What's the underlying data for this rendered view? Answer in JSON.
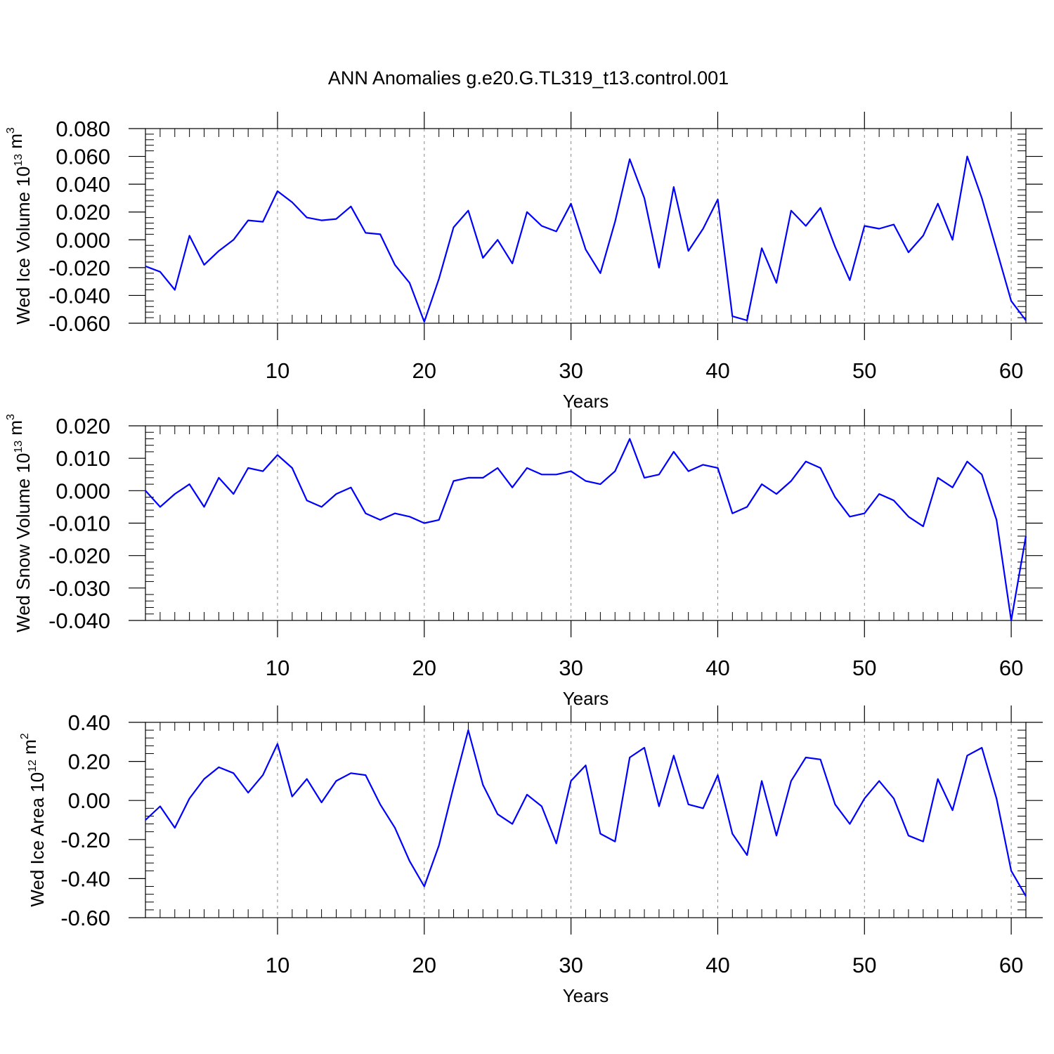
{
  "title": "ANN Anomalies g.e20.G.TL319_t13.control.001",
  "colors": {
    "line": "#0000ff",
    "axis": "#000000",
    "grid": "#888888"
  },
  "chart_data": [
    {
      "type": "line",
      "ylabel": {
        "prefix": "Wed Ice Volume 10",
        "exponent": "13",
        "unit": " m",
        "unit_exponent": "3"
      },
      "xlabel": "Years",
      "xlim": [
        1,
        61
      ],
      "ylim": [
        -0.06,
        0.08
      ],
      "yticks": [
        -0.06,
        -0.04,
        -0.02,
        0.0,
        0.02,
        0.04,
        0.06,
        0.08
      ],
      "ytick_labels": [
        "-0.060",
        "-0.040",
        "-0.020",
        "0.000",
        "0.020",
        "0.040",
        "0.060",
        "0.080"
      ],
      "xticks": [
        10,
        20,
        30,
        40,
        50,
        60
      ],
      "xtick_labels": [
        "10",
        "20",
        "30",
        "40",
        "50",
        "60"
      ],
      "grid": "x dashed",
      "x": [
        1,
        2,
        3,
        4,
        5,
        6,
        7,
        8,
        9,
        10,
        11,
        12,
        13,
        14,
        15,
        16,
        17,
        18,
        19,
        20,
        21,
        22,
        23,
        24,
        25,
        26,
        27,
        28,
        29,
        30,
        31,
        32,
        33,
        34,
        35,
        36,
        37,
        38,
        39,
        40,
        41,
        42,
        43,
        44,
        45,
        46,
        47,
        48,
        49,
        50,
        51,
        52,
        53,
        54,
        55,
        56,
        57,
        58,
        59,
        60,
        61
      ],
      "values": [
        -0.019,
        -0.023,
        -0.036,
        0.003,
        -0.018,
        -0.008,
        0.0,
        0.014,
        0.013,
        0.035,
        0.027,
        0.016,
        0.014,
        0.015,
        0.024,
        0.005,
        0.004,
        -0.018,
        -0.031,
        -0.059,
        -0.028,
        0.009,
        0.021,
        -0.013,
        0.0,
        -0.017,
        0.02,
        0.01,
        0.006,
        0.026,
        -0.007,
        -0.024,
        0.013,
        0.058,
        0.03,
        -0.02,
        0.038,
        -0.008,
        0.008,
        0.029,
        -0.055,
        -0.058,
        -0.006,
        -0.031,
        0.021,
        0.01,
        0.023,
        -0.005,
        -0.029,
        0.01,
        0.008,
        0.011,
        -0.009,
        0.003,
        0.026,
        0.0,
        0.06,
        0.03,
        -0.007,
        -0.044,
        -0.058
      ]
    },
    {
      "type": "line",
      "ylabel": {
        "prefix": "Wed Snow Volume 10",
        "exponent": "13",
        "unit": " m",
        "unit_exponent": "3"
      },
      "xlabel": "Years",
      "xlim": [
        1,
        61
      ],
      "ylim": [
        -0.04,
        0.02
      ],
      "yticks": [
        -0.04,
        -0.03,
        -0.02,
        -0.01,
        0.0,
        0.01,
        0.02
      ],
      "ytick_labels": [
        "-0.040",
        "-0.030",
        "-0.020",
        "-0.010",
        "0.000",
        "0.010",
        "0.020"
      ],
      "xticks": [
        10,
        20,
        30,
        40,
        50,
        60
      ],
      "xtick_labels": [
        "10",
        "20",
        "30",
        "40",
        "50",
        "60"
      ],
      "grid": "x dashed",
      "x": [
        1,
        2,
        3,
        4,
        5,
        6,
        7,
        8,
        9,
        10,
        11,
        12,
        13,
        14,
        15,
        16,
        17,
        18,
        19,
        20,
        21,
        22,
        23,
        24,
        25,
        26,
        27,
        28,
        29,
        30,
        31,
        32,
        33,
        34,
        35,
        36,
        37,
        38,
        39,
        40,
        41,
        42,
        43,
        44,
        45,
        46,
        47,
        48,
        49,
        50,
        51,
        52,
        53,
        54,
        55,
        56,
        57,
        58,
        59,
        60,
        61
      ],
      "values": [
        0.0,
        -0.005,
        -0.001,
        0.002,
        -0.005,
        0.004,
        -0.001,
        0.007,
        0.006,
        0.011,
        0.007,
        -0.003,
        -0.005,
        -0.001,
        0.001,
        -0.007,
        -0.009,
        -0.007,
        -0.008,
        -0.01,
        -0.009,
        0.003,
        0.004,
        0.004,
        0.007,
        0.001,
        0.007,
        0.005,
        0.005,
        0.006,
        0.003,
        0.002,
        0.006,
        0.016,
        0.004,
        0.005,
        0.012,
        0.006,
        0.008,
        0.007,
        -0.007,
        -0.005,
        0.002,
        -0.001,
        0.003,
        0.009,
        0.007,
        -0.002,
        -0.008,
        -0.007,
        -0.001,
        -0.003,
        -0.008,
        -0.011,
        0.004,
        0.001,
        0.009,
        0.005,
        -0.009,
        -0.04,
        -0.014
      ]
    },
    {
      "type": "line",
      "ylabel": {
        "prefix": "Wed Ice Area 10",
        "exponent": "12",
        "unit": " m",
        "unit_exponent": "2"
      },
      "xlabel": "Years",
      "xlim": [
        1,
        61
      ],
      "ylim": [
        -0.6,
        0.4
      ],
      "yticks": [
        -0.6,
        -0.4,
        -0.2,
        0.0,
        0.2,
        0.4
      ],
      "ytick_labels": [
        "-0.60",
        "-0.40",
        "-0.20",
        "0.00",
        "0.20",
        "0.40"
      ],
      "xticks": [
        10,
        20,
        30,
        40,
        50,
        60
      ],
      "xtick_labels": [
        "10",
        "20",
        "30",
        "40",
        "50",
        "60"
      ],
      "grid": "x dashed",
      "x": [
        1,
        2,
        3,
        4,
        5,
        6,
        7,
        8,
        9,
        10,
        11,
        12,
        13,
        14,
        15,
        16,
        17,
        18,
        19,
        20,
        21,
        22,
        23,
        24,
        25,
        26,
        27,
        28,
        29,
        30,
        31,
        32,
        33,
        34,
        35,
        36,
        37,
        38,
        39,
        40,
        41,
        42,
        43,
        44,
        45,
        46,
        47,
        48,
        49,
        50,
        51,
        52,
        53,
        54,
        55,
        56,
        57,
        58,
        59,
        60,
        61
      ],
      "values": [
        -0.1,
        -0.03,
        -0.14,
        0.01,
        0.11,
        0.17,
        0.14,
        0.04,
        0.13,
        0.29,
        0.02,
        0.11,
        -0.01,
        0.1,
        0.14,
        0.13,
        -0.02,
        -0.14,
        -0.31,
        -0.44,
        -0.23,
        0.07,
        0.36,
        0.08,
        -0.07,
        -0.12,
        0.03,
        -0.03,
        -0.22,
        0.1,
        0.18,
        -0.17,
        -0.21,
        0.22,
        0.27,
        -0.03,
        0.23,
        -0.02,
        -0.04,
        0.13,
        -0.17,
        -0.28,
        0.1,
        -0.18,
        0.1,
        0.22,
        0.21,
        -0.02,
        -0.12,
        0.01,
        0.1,
        0.01,
        -0.18,
        -0.21,
        0.11,
        -0.05,
        0.23,
        0.27,
        0.01,
        -0.36,
        -0.49
      ]
    }
  ]
}
